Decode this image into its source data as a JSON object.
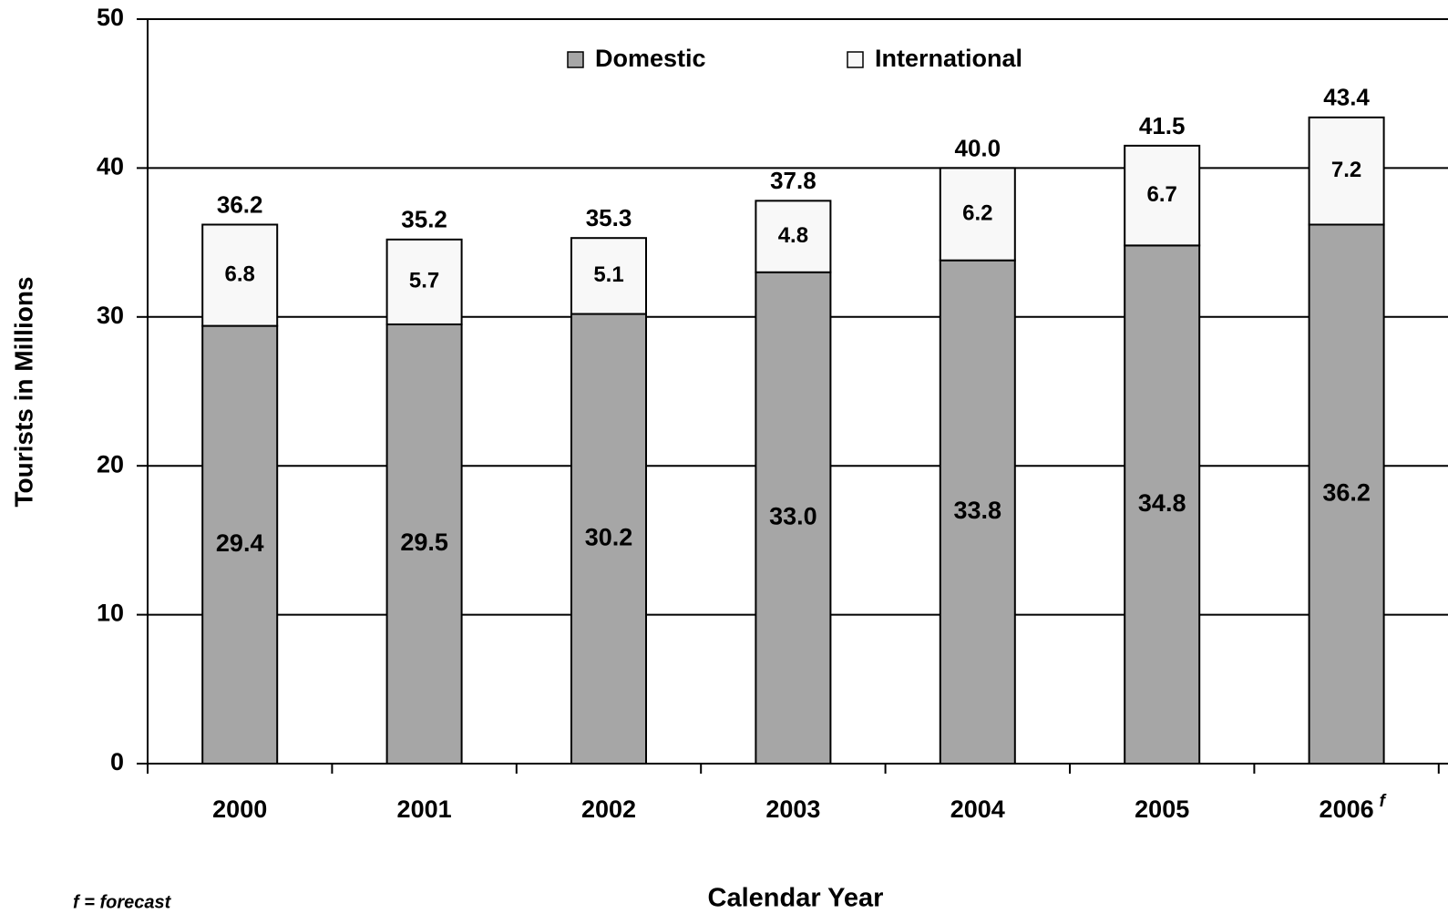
{
  "chart_data": {
    "type": "stacked_bar",
    "y_label": "Tourists in Millions",
    "x_label": "Calendar Year",
    "footnote": "f = forecast",
    "categories": [
      "2000",
      "2001",
      "2002",
      "2003",
      "2004",
      "2005",
      "2006"
    ],
    "category_superscripts": [
      null,
      null,
      null,
      null,
      null,
      null,
      "f"
    ],
    "series": [
      {
        "name": "Domestic",
        "color": "#a6a6a6",
        "values": [
          29.4,
          29.5,
          30.2,
          33.0,
          33.8,
          34.8,
          36.2
        ],
        "value_labels": [
          "29.4",
          "29.5",
          "30.2",
          "33.0",
          "33.8",
          "34.8",
          "36.2"
        ]
      },
      {
        "name": "International",
        "color": "#f8f8f8",
        "values": [
          6.8,
          5.7,
          5.1,
          4.8,
          6.2,
          6.7,
          7.2
        ],
        "value_labels": [
          "6.8",
          "5.7",
          "5.1",
          "4.8",
          "6.2",
          "6.7",
          "7.2"
        ]
      }
    ],
    "totals": [
      36.2,
      35.2,
      35.3,
      37.8,
      40.0,
      41.5,
      43.4
    ],
    "total_labels": [
      "36.2",
      "35.2",
      "35.3",
      "37.8",
      "40.0",
      "41.5",
      "43.4"
    ],
    "ylim": [
      0,
      50
    ],
    "yticks": [
      0,
      10,
      20,
      30,
      40,
      50
    ],
    "grid": true,
    "legend": "top"
  }
}
